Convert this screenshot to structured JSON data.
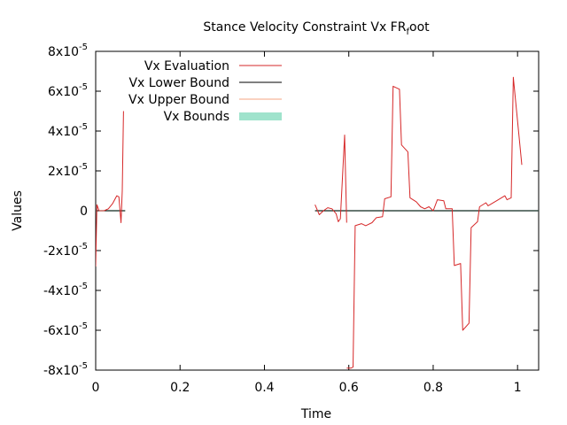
{
  "chart_data": {
    "type": "line",
    "title": "Stance Velocity Constraint Vx FR",
    "title_subscript": "f",
    "title_suffix": "oot",
    "xlabel": "Time",
    "ylabel": "Values",
    "xlim": [
      0,
      1.05
    ],
    "ylim": [
      -8e-05,
      8e-05
    ],
    "x_ticks": [
      {
        "value": 0,
        "label": "0"
      },
      {
        "value": 0.2,
        "label": "0.2"
      },
      {
        "value": 0.4,
        "label": "0.4"
      },
      {
        "value": 0.6,
        "label": "0.6"
      },
      {
        "value": 0.8,
        "label": "0.8"
      },
      {
        "value": 1.0,
        "label": "1"
      }
    ],
    "y_ticks": [
      {
        "value": 8e-05,
        "mantissa": "8x10",
        "exp": "-5"
      },
      {
        "value": 6e-05,
        "mantissa": "6x10",
        "exp": "-5"
      },
      {
        "value": 4e-05,
        "mantissa": "4x10",
        "exp": "-5"
      },
      {
        "value": 2e-05,
        "mantissa": "2x10",
        "exp": "-5"
      },
      {
        "value": 0,
        "mantissa": "0",
        "exp": ""
      },
      {
        "value": -2e-05,
        "mantissa": "-2x10",
        "exp": "-5"
      },
      {
        "value": -4e-05,
        "mantissa": "-4x10",
        "exp": "-5"
      },
      {
        "value": -6e-05,
        "mantissa": "-6x10",
        "exp": "-5"
      },
      {
        "value": -8e-05,
        "mantissa": "-8x10",
        "exp": "-5"
      }
    ],
    "grid": false,
    "legend_position": "top-left",
    "series": [
      {
        "name": "Vx Evaluation",
        "color": "#d62728",
        "style": "line",
        "segments": [
          [
            [
              0.0,
              -2.8e-05
            ],
            [
              0.003,
              3e-06
            ],
            [
              0.008,
              0.0
            ],
            [
              0.02,
              0.0
            ],
            [
              0.03,
              1e-06
            ],
            [
              0.04,
              3.5e-06
            ],
            [
              0.05,
              7.5e-06
            ],
            [
              0.055,
              7e-06
            ],
            [
              0.06,
              -6e-06
            ],
            [
              0.063,
              1e-05
            ],
            [
              0.066,
              5e-05
            ]
          ],
          [
            [
              0.52,
              3e-06
            ],
            [
              0.53,
              -2e-06
            ],
            [
              0.54,
              0.0
            ],
            [
              0.55,
              1.5e-06
            ],
            [
              0.56,
              1e-06
            ],
            [
              0.57,
              -1.5e-06
            ],
            [
              0.575,
              -5.5e-06
            ],
            [
              0.58,
              -4e-06
            ],
            [
              0.59,
              3.8e-05
            ],
            [
              0.595,
              -6e-06
            ]
          ],
          [
            [
              0.595,
              -7.9e-05
            ],
            [
              0.605,
              -7.9e-05
            ],
            [
              0.61,
              -7.85e-05
            ],
            [
              0.615,
              -7.5e-06
            ],
            [
              0.63,
              -6.5e-06
            ],
            [
              0.64,
              -7.5e-06
            ],
            [
              0.655,
              -6e-06
            ],
            [
              0.665,
              -3.5e-06
            ],
            [
              0.68,
              -3e-06
            ],
            [
              0.685,
              6e-06
            ],
            [
              0.7,
              7e-06
            ],
            [
              0.705,
              6.25e-05
            ],
            [
              0.72,
              6.1e-05
            ],
            [
              0.725,
              3.3e-05
            ],
            [
              0.74,
              2.95e-05
            ],
            [
              0.745,
              6.5e-06
            ],
            [
              0.76,
              4.5e-06
            ],
            [
              0.77,
              2e-06
            ],
            [
              0.78,
              1e-06
            ],
            [
              0.79,
              2e-06
            ],
            [
              0.8,
              0.0
            ],
            [
              0.81,
              5.5e-06
            ],
            [
              0.825,
              5e-06
            ],
            [
              0.83,
              1e-06
            ],
            [
              0.845,
              1e-06
            ],
            [
              0.85,
              -2.75e-05
            ],
            [
              0.865,
              -2.65e-05
            ],
            [
              0.87,
              -6e-05
            ],
            [
              0.885,
              -5.65e-05
            ],
            [
              0.89,
              -8.5e-06
            ],
            [
              0.905,
              -5.5e-06
            ],
            [
              0.91,
              2e-06
            ],
            [
              0.925,
              4e-06
            ],
            [
              0.93,
              2.5e-06
            ],
            [
              0.95,
              5e-06
            ],
            [
              0.97,
              7.5e-06
            ],
            [
              0.975,
              5.5e-06
            ],
            [
              0.985,
              6.5e-06
            ],
            [
              0.99,
              6.7e-05
            ],
            [
              1.0,
              4.5e-05
            ],
            [
              1.01,
              2.3e-05
            ]
          ]
        ]
      },
      {
        "name": "Vx Lower Bound",
        "color": "#000000",
        "style": "line",
        "segments": [
          [
            [
              0.0,
              0.0
            ],
            [
              0.07,
              0.0
            ]
          ],
          [
            [
              0.52,
              0.0
            ],
            [
              1.05,
              0.0
            ]
          ]
        ]
      },
      {
        "name": "Vx Upper Bound",
        "color": "#f4a582",
        "style": "line",
        "segments": [
          [
            [
              0.0,
              0.0
            ],
            [
              0.07,
              0.0
            ]
          ],
          [
            [
              0.52,
              0.0
            ],
            [
              1.05,
              0.0
            ]
          ]
        ]
      },
      {
        "name": "Vx Bounds",
        "color": "#9fe3cc",
        "style": "band",
        "segments": [
          [
            [
              0.0,
              0.0
            ],
            [
              0.07,
              0.0
            ]
          ],
          [
            [
              0.52,
              0.0
            ],
            [
              1.05,
              0.0
            ]
          ]
        ]
      }
    ]
  }
}
